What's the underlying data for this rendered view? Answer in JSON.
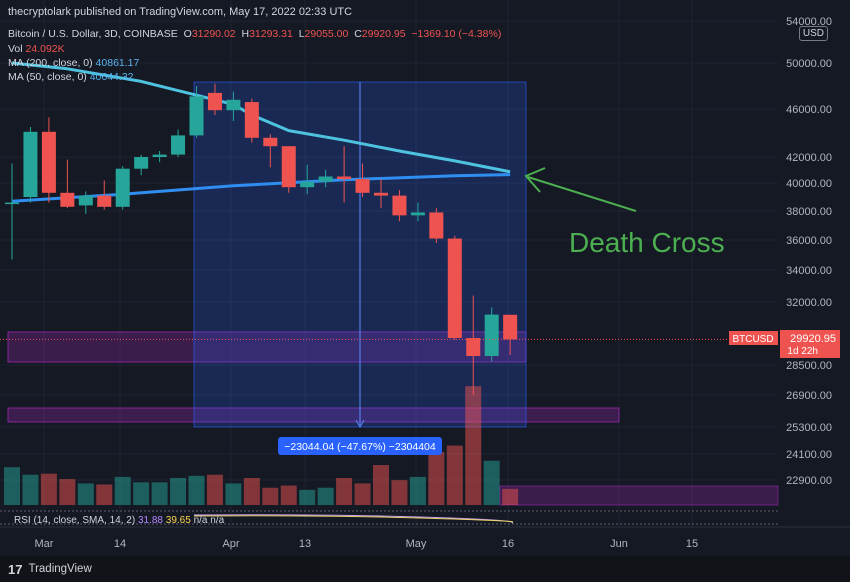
{
  "header": {
    "published": "thecryptolark published on TradingView.com, May 17, 2022 02:33 UTC",
    "symbol": "Bitcoin / U.S. Dollar, 3D, COINBASE",
    "ohlc": {
      "o": "31290.02",
      "h": "31293.31",
      "l": "29055.00",
      "c": "29920.95",
      "chg": "−1369.10 (−4.38%)"
    },
    "vol_label": "Vol",
    "vol_value": "24.092K",
    "ma200_label": "MA (200, close, 0)",
    "ma200_value": "40861.17",
    "ma50_label": "MA (50, close, 0)",
    "ma50_value": "40644.32",
    "currency": "USD"
  },
  "footer": {
    "logo": "17",
    "brand": "TradingView"
  },
  "chart_data": {
    "type": "candlestick",
    "x_ticks": [
      "Mar",
      "14",
      "Apr",
      "13",
      "May",
      "16",
      "Jun",
      "15"
    ],
    "y_ticks": [
      54000,
      50000,
      46000,
      42000,
      40000,
      38000,
      36000,
      34000,
      32000,
      28500,
      26900,
      25300,
      24100,
      22900
    ],
    "y_tick_labels": [
      "54000.00",
      "50000.00",
      "46000.00",
      "42000.00",
      "40000.00",
      "38000.00",
      "36000.00",
      "34000.00",
      "32000.00",
      "28500.00",
      "26900.00",
      "25300.00",
      "24100.00",
      "22900.00"
    ],
    "candles": [
      {
        "o": 38500,
        "h": 41500,
        "l": 34700,
        "c": 38600
      },
      {
        "o": 39000,
        "h": 44500,
        "l": 38600,
        "c": 44100
      },
      {
        "o": 44100,
        "h": 45300,
        "l": 38600,
        "c": 39300
      },
      {
        "o": 39300,
        "h": 41800,
        "l": 38200,
        "c": 38300
      },
      {
        "o": 38400,
        "h": 39400,
        "l": 37800,
        "c": 39100
      },
      {
        "o": 39100,
        "h": 40200,
        "l": 38100,
        "c": 38300
      },
      {
        "o": 38300,
        "h": 41300,
        "l": 38100,
        "c": 41100
      },
      {
        "o": 41100,
        "h": 42200,
        "l": 40600,
        "c": 42000
      },
      {
        "o": 42000,
        "h": 42500,
        "l": 41600,
        "c": 42200
      },
      {
        "o": 42200,
        "h": 44300,
        "l": 42000,
        "c": 43800
      },
      {
        "o": 43800,
        "h": 48000,
        "l": 43600,
        "c": 47100
      },
      {
        "o": 47400,
        "h": 48200,
        "l": 45500,
        "c": 45900
      },
      {
        "o": 45900,
        "h": 47500,
        "l": 45000,
        "c": 46800
      },
      {
        "o": 46600,
        "h": 46900,
        "l": 43200,
        "c": 43600
      },
      {
        "o": 43600,
        "h": 43900,
        "l": 41200,
        "c": 42900
      },
      {
        "o": 42900,
        "h": 42900,
        "l": 39300,
        "c": 39700
      },
      {
        "o": 39700,
        "h": 41400,
        "l": 39200,
        "c": 40100
      },
      {
        "o": 40100,
        "h": 41000,
        "l": 39700,
        "c": 40500
      },
      {
        "o": 40500,
        "h": 42900,
        "l": 38600,
        "c": 40300
      },
      {
        "o": 40300,
        "h": 41500,
        "l": 39000,
        "c": 39300
      },
      {
        "o": 39300,
        "h": 40300,
        "l": 38200,
        "c": 39100
      },
      {
        "o": 39100,
        "h": 39500,
        "l": 37300,
        "c": 37700
      },
      {
        "o": 37700,
        "h": 38600,
        "l": 37300,
        "c": 37900
      },
      {
        "o": 37900,
        "h": 38200,
        "l": 35800,
        "c": 36100
      },
      {
        "o": 36100,
        "h": 36300,
        "l": 29900,
        "c": 30000
      },
      {
        "o": 30000,
        "h": 32400,
        "l": 26900,
        "c": 29000
      },
      {
        "o": 29000,
        "h": 31700,
        "l": 28700,
        "c": 31300
      },
      {
        "o": 31290.02,
        "h": 31293.31,
        "l": 29055.0,
        "c": 29920.95
      }
    ],
    "volume": [
      {
        "v": 3.5,
        "up": true
      },
      {
        "v": 2.8,
        "up": true
      },
      {
        "v": 2.9,
        "up": false
      },
      {
        "v": 2.4,
        "up": false
      },
      {
        "v": 2.0,
        "up": true
      },
      {
        "v": 1.9,
        "up": false
      },
      {
        "v": 2.6,
        "up": true
      },
      {
        "v": 2.1,
        "up": true
      },
      {
        "v": 2.1,
        "up": true
      },
      {
        "v": 2.5,
        "up": true
      },
      {
        "v": 2.7,
        "up": true
      },
      {
        "v": 2.8,
        "up": false
      },
      {
        "v": 2.0,
        "up": true
      },
      {
        "v": 2.5,
        "up": false
      },
      {
        "v": 1.6,
        "up": false
      },
      {
        "v": 1.8,
        "up": false
      },
      {
        "v": 1.4,
        "up": true
      },
      {
        "v": 1.6,
        "up": true
      },
      {
        "v": 2.5,
        "up": false
      },
      {
        "v": 2.0,
        "up": false
      },
      {
        "v": 3.7,
        "up": false
      },
      {
        "v": 2.3,
        "up": false
      },
      {
        "v": 2.6,
        "up": true
      },
      {
        "v": 4.9,
        "up": false
      },
      {
        "v": 5.5,
        "up": false
      },
      {
        "v": 11.0,
        "up": false
      },
      {
        "v": 4.1,
        "up": true
      },
      {
        "v": 1.5,
        "up": false
      }
    ],
    "ma200": [
      [
        0,
        50000
      ],
      [
        3,
        49500
      ],
      [
        7,
        48400
      ],
      [
        10,
        47200
      ],
      [
        12,
        46400
      ],
      [
        13,
        45500
      ],
      [
        15,
        44200
      ],
      [
        18,
        43400
      ],
      [
        21,
        42500
      ],
      [
        24,
        41700
      ],
      [
        27,
        40861.17
      ]
    ],
    "ma50": [
      [
        0,
        38700
      ],
      [
        6,
        39200
      ],
      [
        12,
        39800
      ],
      [
        18,
        40250
      ],
      [
        24,
        40550
      ],
      [
        27,
        40644.32
      ]
    ],
    "price_badge": {
      "label": "BTCUSD",
      "value": "29920.95",
      "timer": "1d 22h"
    },
    "measure": {
      "label": "−23044.04 (−47.67%) −2304404"
    },
    "annotation": {
      "text": "Death Cross"
    },
    "rsi": {
      "label": "RSI (14, close, SMA, 14, 2)",
      "v1": "31.88",
      "v2": "39.65",
      "v3": "n/a",
      "v4": "n/a"
    },
    "colors": {
      "up": "#26a69a",
      "down": "#ef5350",
      "ma200": "#4ec3e0",
      "ma50": "#2f8ef0",
      "zone": "#9c27b0",
      "measure": "#2962ff",
      "annotation": "#4caf50"
    }
  }
}
